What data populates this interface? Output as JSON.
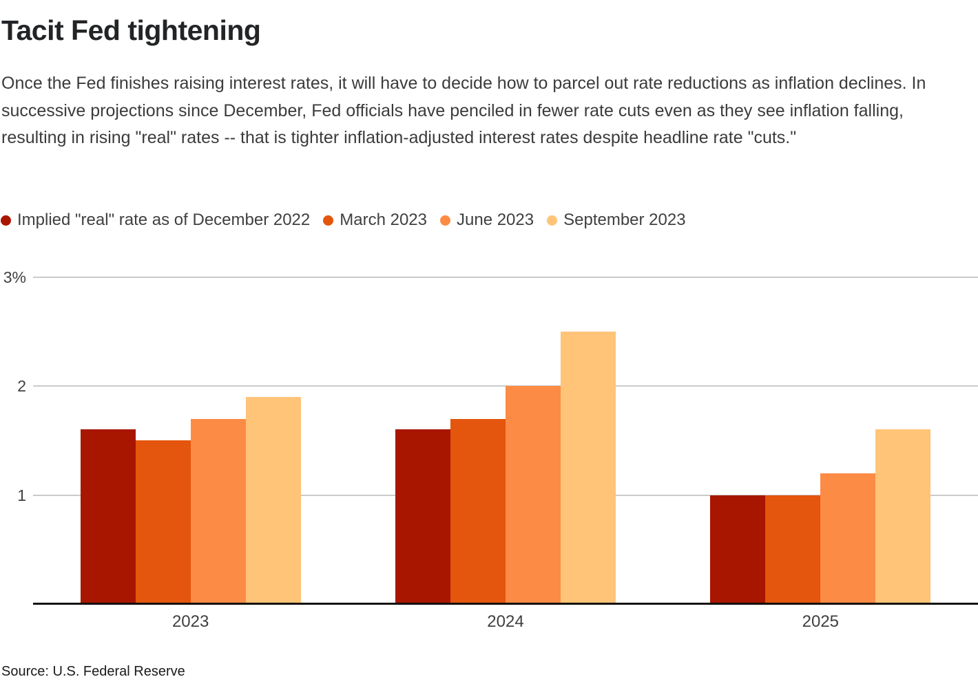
{
  "title": "Tacit Fed tightening",
  "subtitle": "Once the Fed finishes raising interest rates, it will have to decide how to parcel out rate reductions as inflation declines. In successive projections since December, Fed officials have penciled in fewer rate cuts even as they see inflation falling, resulting in rising \"real\" rates -- that is tighter inflation-adjusted interest rates despite headline rate \"cuts.\"",
  "source": "Source: U.S. Federal Reserve",
  "colors": {
    "dec2022": "#a81600",
    "mar2023": "#e4550d",
    "jun2023": "#fc8b45",
    "sep2023": "#ffc478",
    "gridline": "#cbcbcb",
    "axis": "#14110d"
  },
  "chart_data": {
    "type": "bar",
    "categories": [
      "2023",
      "2024",
      "2025"
    ],
    "series": [
      {
        "name": "Implied \"real\" rate as of December 2022",
        "color": "#a81600",
        "values": [
          1.6,
          1.6,
          1.0
        ]
      },
      {
        "name": "March 2023",
        "color": "#e4550d",
        "values": [
          1.5,
          1.7,
          1.0
        ]
      },
      {
        "name": "June 2023",
        "color": "#fc8b45",
        "values": [
          1.7,
          2.0,
          1.2
        ]
      },
      {
        "name": "September 2023",
        "color": "#ffc478",
        "values": [
          1.9,
          2.5,
          1.6
        ]
      }
    ],
    "title": "Tacit Fed tightening",
    "xlabel": "",
    "ylabel": "",
    "ylim": [
      0,
      3.13
    ],
    "yticks": [
      {
        "value": 3,
        "label": "3%"
      },
      {
        "value": 2,
        "label": "2"
      },
      {
        "value": 1,
        "label": "1"
      }
    ],
    "grid": true,
    "legend_position": "top-left"
  }
}
